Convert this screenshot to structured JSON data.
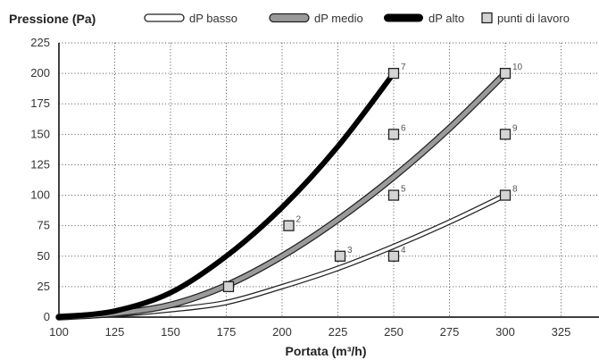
{
  "chart_data": {
    "type": "line",
    "ylabel": "Pressione (Pa)",
    "xlabel": "Portata (m³/h)",
    "xlim": [
      100,
      345
    ],
    "ylim": [
      0,
      225
    ],
    "x_ticks": [
      100,
      125,
      150,
      175,
      200,
      225,
      250,
      275,
      300,
      325
    ],
    "y_ticks": [
      0,
      25,
      50,
      75,
      100,
      125,
      150,
      175,
      200,
      225
    ],
    "grid": true,
    "legend_position": "top",
    "legend": [
      {
        "label": "dP basso",
        "style": "outline"
      },
      {
        "label": "dP medio",
        "style": "gray"
      },
      {
        "label": "dP alto",
        "style": "black"
      },
      {
        "label": "punti di lavoro",
        "style": "square"
      }
    ],
    "series": [
      {
        "key": "basso",
        "style": "outline",
        "points": [
          [
            100,
            0
          ],
          [
            125,
            2
          ],
          [
            150,
            6
          ],
          [
            175,
            12
          ],
          [
            200,
            25
          ],
          [
            225,
            40
          ],
          [
            250,
            58
          ],
          [
            275,
            78
          ],
          [
            300,
            100
          ]
        ]
      },
      {
        "key": "medio",
        "style": "gray",
        "points": [
          [
            100,
            0
          ],
          [
            125,
            3
          ],
          [
            150,
            10
          ],
          [
            175,
            26
          ],
          [
            200,
            50
          ],
          [
            225,
            80
          ],
          [
            250,
            115
          ],
          [
            275,
            155
          ],
          [
            300,
            200
          ]
        ]
      },
      {
        "key": "alto",
        "style": "black",
        "points": [
          [
            100,
            0
          ],
          [
            125,
            5
          ],
          [
            150,
            20
          ],
          [
            175,
            50
          ],
          [
            200,
            90
          ],
          [
            225,
            140
          ],
          [
            250,
            200
          ]
        ]
      }
    ],
    "work_points": [
      {
        "label": "",
        "x": 176,
        "y": 25
      },
      {
        "label": "2",
        "x": 203,
        "y": 75
      },
      {
        "label": "3",
        "x": 226,
        "y": 50
      },
      {
        "label": "4",
        "x": 250,
        "y": 50
      },
      {
        "label": "5",
        "x": 250,
        "y": 100
      },
      {
        "label": "6",
        "x": 250,
        "y": 150
      },
      {
        "label": "7",
        "x": 250,
        "y": 200
      },
      {
        "label": "8",
        "x": 300,
        "y": 100
      },
      {
        "label": "9",
        "x": 300,
        "y": 150
      },
      {
        "label": "10",
        "x": 300,
        "y": 200
      }
    ],
    "colors": {
      "outline_stroke": "#222222",
      "outline_fill": "#ffffff",
      "gray_fill": "#9a9a9a",
      "black": "#000000",
      "grid": "#555555",
      "square_fill": "#d4d4d4"
    }
  }
}
